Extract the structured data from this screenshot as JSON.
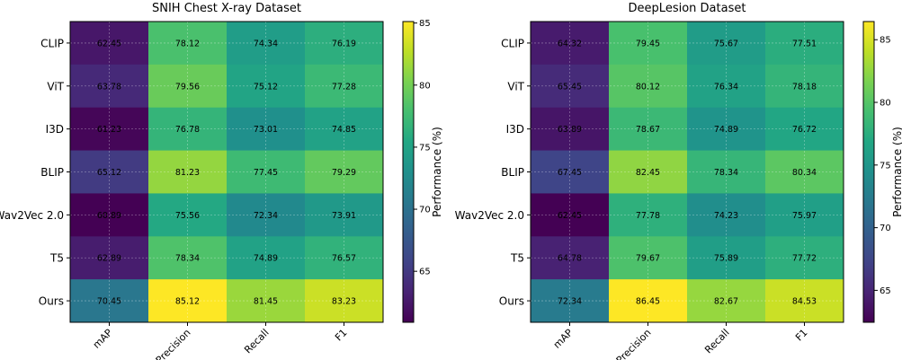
{
  "chart_data": [
    {
      "type": "heatmap",
      "title": "SNIH Chest X-ray Dataset",
      "rows": [
        "CLIP",
        "ViT",
        "I3D",
        "BLIP",
        "Wav2Vec 2.0",
        "T5",
        "Ours"
      ],
      "columns": [
        "mAP",
        "Precision",
        "Recall",
        "F1"
      ],
      "values": [
        [
          62.45,
          78.12,
          74.34,
          76.19
        ],
        [
          63.78,
          79.56,
          75.12,
          77.28
        ],
        [
          61.23,
          76.78,
          73.01,
          74.85
        ],
        [
          65.12,
          81.23,
          77.45,
          79.29
        ],
        [
          60.89,
          75.56,
          72.34,
          73.91
        ],
        [
          62.89,
          78.34,
          74.89,
          76.57
        ],
        [
          70.45,
          85.12,
          81.45,
          83.23
        ]
      ],
      "colorbar": {
        "label": "Performance (%)",
        "range": [
          60.89,
          85.12
        ],
        "ticks": [
          65,
          70,
          75,
          80,
          85
        ]
      }
    },
    {
      "type": "heatmap",
      "title": "DeepLesion Dataset",
      "rows": [
        "CLIP",
        "ViT",
        "I3D",
        "BLIP",
        "Wav2Vec 2.0",
        "T5",
        "Ours"
      ],
      "columns": [
        "mAP",
        "Precision",
        "Recall",
        "F1"
      ],
      "values": [
        [
          64.32,
          79.45,
          75.67,
          77.51
        ],
        [
          65.45,
          80.12,
          76.34,
          78.18
        ],
        [
          63.89,
          78.67,
          74.89,
          76.72
        ],
        [
          67.45,
          82.45,
          78.34,
          80.34
        ],
        [
          62.45,
          77.78,
          74.23,
          75.97
        ],
        [
          64.78,
          79.67,
          75.89,
          77.72
        ],
        [
          72.34,
          86.45,
          82.67,
          84.53
        ]
      ],
      "colorbar": {
        "label": "Performance (%)",
        "range": [
          62.45,
          86.45
        ],
        "ticks": [
          65,
          70,
          75,
          80,
          85
        ]
      }
    }
  ]
}
